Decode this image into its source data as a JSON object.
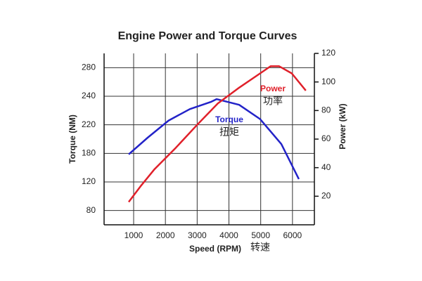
{
  "chart_data": {
    "type": "line",
    "title": "Engine Power and Torque Curves",
    "x_label": "Speed (RPM)",
    "y_label": "Torque (NM)",
    "y2_label": "Power (kW)",
    "xlim": [
      70,
      6690
    ],
    "xticks": [
      1000,
      2000,
      3000,
      4000,
      5000,
      6000
    ],
    "ylim": [
      60,
      300
    ],
    "yticks": [
      80,
      120,
      180,
      220,
      240,
      280
    ],
    "y2lim": [
      0,
      120
    ],
    "y2ticks": [
      20,
      40,
      60,
      80,
      100,
      120
    ],
    "grid": true,
    "series": [
      {
        "name": "Torque",
        "color": "#2323c8",
        "axis": "y",
        "x": [
          845,
          1440,
          2100,
          2770,
          3430,
          3610,
          4320,
          4980,
          5650,
          6200
        ],
        "values": [
          178,
          202,
          223,
          231,
          236,
          238,
          234,
          224,
          193,
          126
        ]
      },
      {
        "name": "Power",
        "color": "#e0202a",
        "axis": "y2",
        "x": [
          845,
          1220,
          1660,
          2330,
          3000,
          3650,
          4320,
          4980,
          5310,
          5580,
          5980,
          6420
        ],
        "values": [
          16,
          27,
          39,
          54,
          70,
          85,
          96,
          106,
          111,
          111,
          106,
          94
        ]
      }
    ],
    "annotations": [
      "功率",
      "扭矩",
      "转速"
    ]
  }
}
